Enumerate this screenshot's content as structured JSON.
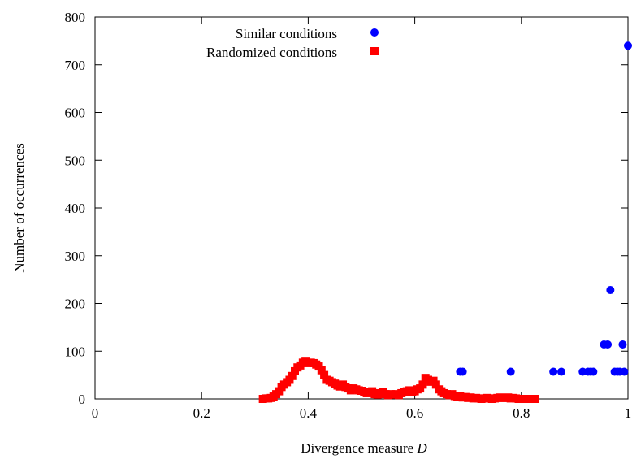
{
  "chart_data": {
    "type": "scatter",
    "title": "",
    "xlabel": "Divergence measure",
    "xlabel_symbol": "D",
    "ylabel": "Number of occurrences",
    "xlim": [
      0,
      1
    ],
    "ylim": [
      0,
      800
    ],
    "x_ticks": [
      "0",
      "0.2",
      "0.4",
      "0.6",
      "0.8",
      "1"
    ],
    "y_ticks": [
      "0",
      "100",
      "200",
      "300",
      "400",
      "500",
      "600",
      "700",
      "800"
    ],
    "grid": false,
    "legend_position": "top-center",
    "series": [
      {
        "name": "Similar conditions",
        "marker": "circle",
        "color": "#0000ff",
        "points": [
          [
            0.685,
            57
          ],
          [
            0.69,
            57
          ],
          [
            0.78,
            57
          ],
          [
            0.86,
            57
          ],
          [
            0.875,
            57
          ],
          [
            0.915,
            57
          ],
          [
            0.925,
            57
          ],
          [
            0.93,
            57
          ],
          [
            0.935,
            57
          ],
          [
            0.955,
            114
          ],
          [
            0.962,
            114
          ],
          [
            0.967,
            228
          ],
          [
            0.975,
            57
          ],
          [
            0.98,
            57
          ],
          [
            0.985,
            57
          ],
          [
            0.99,
            114
          ],
          [
            0.993,
            57
          ],
          [
            1.0,
            740
          ]
        ]
      },
      {
        "name": "Randomized conditions",
        "marker": "square",
        "color": "#ff0000",
        "points": [
          [
            0.315,
            0
          ],
          [
            0.32,
            1
          ],
          [
            0.325,
            1
          ],
          [
            0.33,
            2
          ],
          [
            0.335,
            5
          ],
          [
            0.34,
            10
          ],
          [
            0.345,
            16
          ],
          [
            0.35,
            25
          ],
          [
            0.355,
            30
          ],
          [
            0.36,
            35
          ],
          [
            0.365,
            40
          ],
          [
            0.37,
            48
          ],
          [
            0.375,
            58
          ],
          [
            0.38,
            66
          ],
          [
            0.385,
            70
          ],
          [
            0.39,
            76
          ],
          [
            0.395,
            78
          ],
          [
            0.4,
            75
          ],
          [
            0.405,
            76
          ],
          [
            0.41,
            75
          ],
          [
            0.415,
            72
          ],
          [
            0.42,
            68
          ],
          [
            0.425,
            60
          ],
          [
            0.43,
            50
          ],
          [
            0.435,
            40
          ],
          [
            0.44,
            38
          ],
          [
            0.445,
            35
          ],
          [
            0.45,
            32
          ],
          [
            0.455,
            28
          ],
          [
            0.46,
            26
          ],
          [
            0.465,
            30
          ],
          [
            0.47,
            25
          ],
          [
            0.475,
            22
          ],
          [
            0.48,
            18
          ],
          [
            0.485,
            22
          ],
          [
            0.49,
            20
          ],
          [
            0.495,
            18
          ],
          [
            0.5,
            17
          ],
          [
            0.505,
            15
          ],
          [
            0.51,
            12
          ],
          [
            0.515,
            14
          ],
          [
            0.52,
            16
          ],
          [
            0.525,
            10
          ],
          [
            0.53,
            9
          ],
          [
            0.535,
            12
          ],
          [
            0.54,
            14
          ],
          [
            0.545,
            10
          ],
          [
            0.55,
            8
          ],
          [
            0.555,
            10
          ],
          [
            0.56,
            9
          ],
          [
            0.565,
            10
          ],
          [
            0.57,
            8
          ],
          [
            0.575,
            12
          ],
          [
            0.58,
            14
          ],
          [
            0.585,
            16
          ],
          [
            0.59,
            18
          ],
          [
            0.595,
            15
          ],
          [
            0.6,
            16
          ],
          [
            0.605,
            20
          ],
          [
            0.61,
            22
          ],
          [
            0.615,
            30
          ],
          [
            0.62,
            44
          ],
          [
            0.625,
            40
          ],
          [
            0.63,
            36
          ],
          [
            0.635,
            38
          ],
          [
            0.64,
            30
          ],
          [
            0.645,
            20
          ],
          [
            0.65,
            16
          ],
          [
            0.655,
            12
          ],
          [
            0.66,
            10
          ],
          [
            0.665,
            8
          ],
          [
            0.67,
            10
          ],
          [
            0.675,
            6
          ],
          [
            0.68,
            4
          ],
          [
            0.685,
            6
          ],
          [
            0.69,
            3
          ],
          [
            0.695,
            4
          ],
          [
            0.7,
            2
          ],
          [
            0.705,
            3
          ],
          [
            0.71,
            1
          ],
          [
            0.715,
            2
          ],
          [
            0.72,
            1
          ],
          [
            0.725,
            0
          ],
          [
            0.73,
            1
          ],
          [
            0.735,
            2
          ],
          [
            0.74,
            1
          ],
          [
            0.745,
            0
          ],
          [
            0.75,
            1
          ],
          [
            0.755,
            2
          ],
          [
            0.76,
            3
          ],
          [
            0.765,
            2
          ],
          [
            0.77,
            2
          ],
          [
            0.775,
            3
          ],
          [
            0.78,
            1
          ],
          [
            0.785,
            2
          ],
          [
            0.79,
            1
          ],
          [
            0.795,
            0
          ],
          [
            0.81,
            0
          ],
          [
            0.82,
            0
          ],
          [
            0.825,
            0
          ]
        ]
      }
    ]
  }
}
